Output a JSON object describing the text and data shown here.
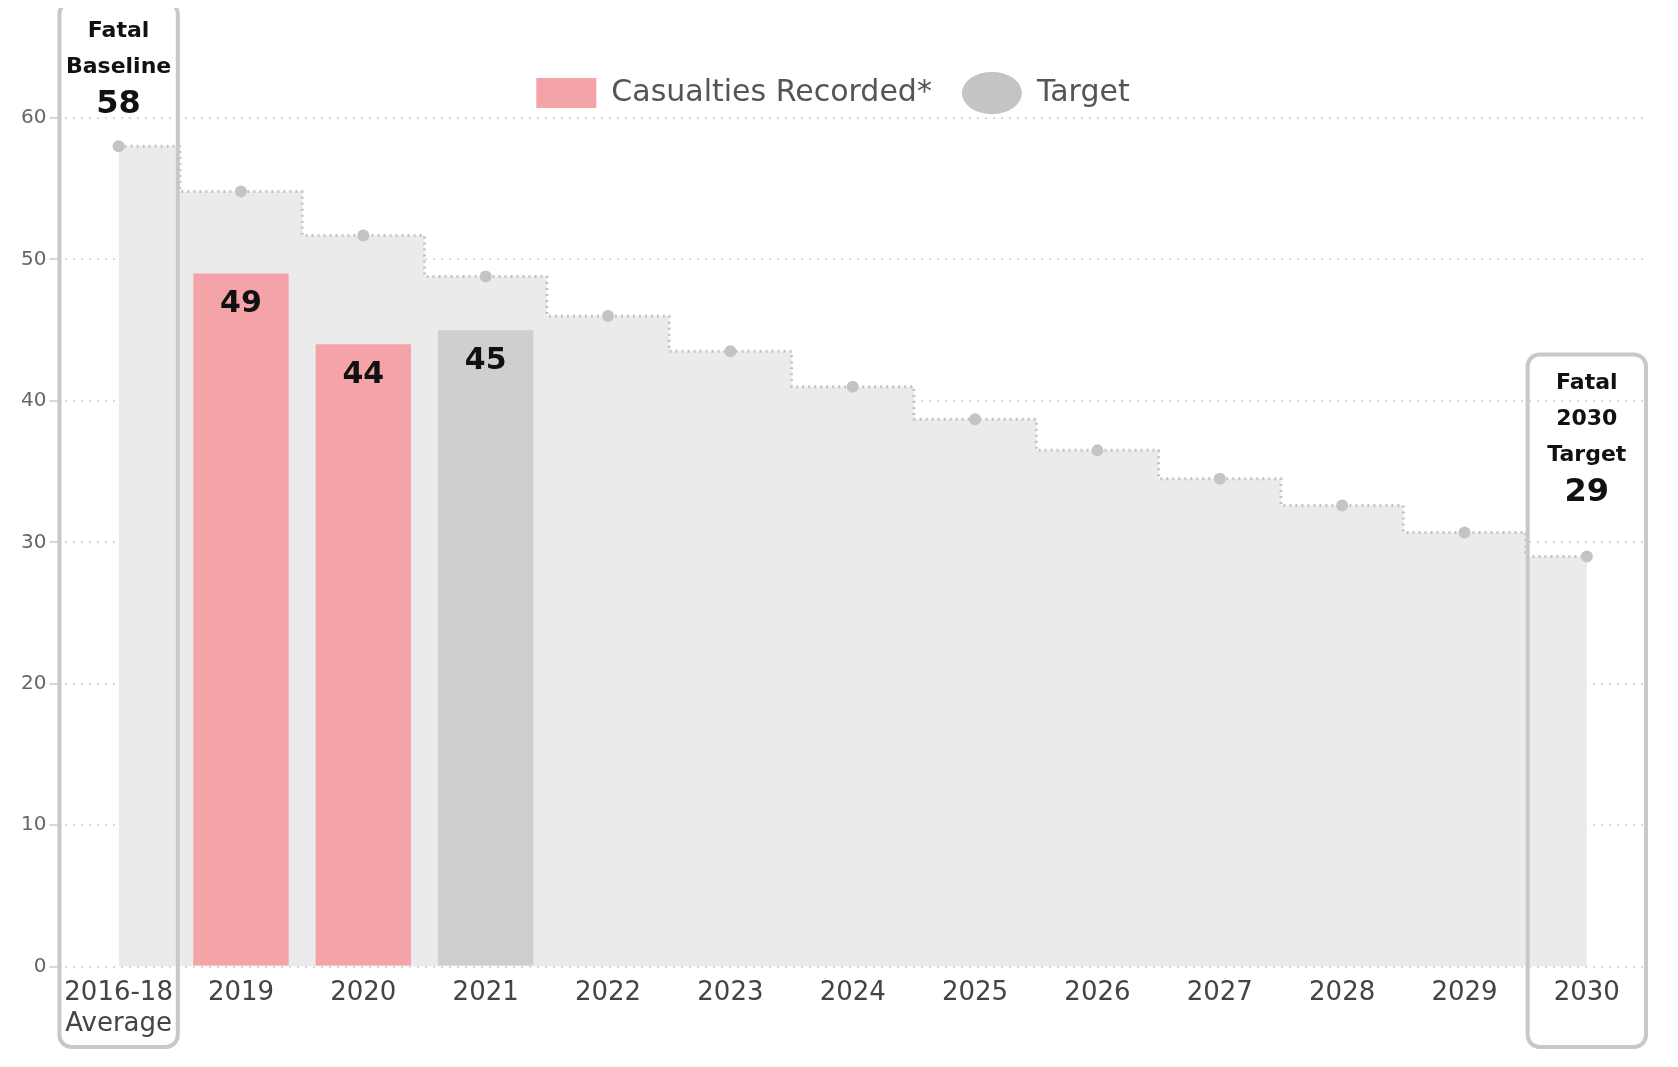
{
  "chart_data": {
    "type": "bar",
    "categories": [
      "2016-18 Average",
      "2019",
      "2020",
      "2021",
      "2022",
      "2023",
      "2024",
      "2025",
      "2026",
      "2027",
      "2028",
      "2029",
      "2030"
    ],
    "series": [
      {
        "name": "Casualties Recorded*",
        "color": "#f4a3a8",
        "colors": [
          null,
          null,
          null,
          "#cfcfcf",
          null,
          null,
          null,
          null,
          null,
          null,
          null,
          null,
          null
        ],
        "values": [
          null,
          49,
          44,
          45,
          null,
          null,
          null,
          null,
          null,
          null,
          null,
          null,
          null
        ],
        "value_labels": [
          null,
          "49",
          "44",
          "45",
          null,
          null,
          null,
          null,
          null,
          null,
          null,
          null,
          null
        ]
      },
      {
        "name": "Target",
        "type": "step",
        "marker": "circle",
        "color": "#c4c4c4",
        "values": [
          58,
          54.8,
          51.7,
          48.8,
          46.0,
          43.5,
          41.0,
          38.7,
          36.5,
          34.5,
          32.6,
          30.7,
          29
        ]
      },
      {
        "type": "area",
        "color": "#ebebeb",
        "values": [
          58,
          54.8,
          51.7,
          48.8,
          46.0,
          43.5,
          41.0,
          38.7,
          36.5,
          34.5,
          32.6,
          30.7,
          29
        ]
      }
    ],
    "ylim": [
      0,
      60
    ],
    "yticks": [
      0,
      10,
      20,
      30,
      40,
      50,
      60
    ],
    "grid": "y",
    "legend": "top",
    "line_style": "dotted",
    "annotations": [
      "Fatal",
      "Baseline",
      {
        "text": "58",
        "x": "2016-18 Average",
        "y": 58
      },
      "Fatal",
      "2030",
      "Target",
      {
        "text": "29",
        "x": "2030",
        "y": 29
      }
    ]
  }
}
